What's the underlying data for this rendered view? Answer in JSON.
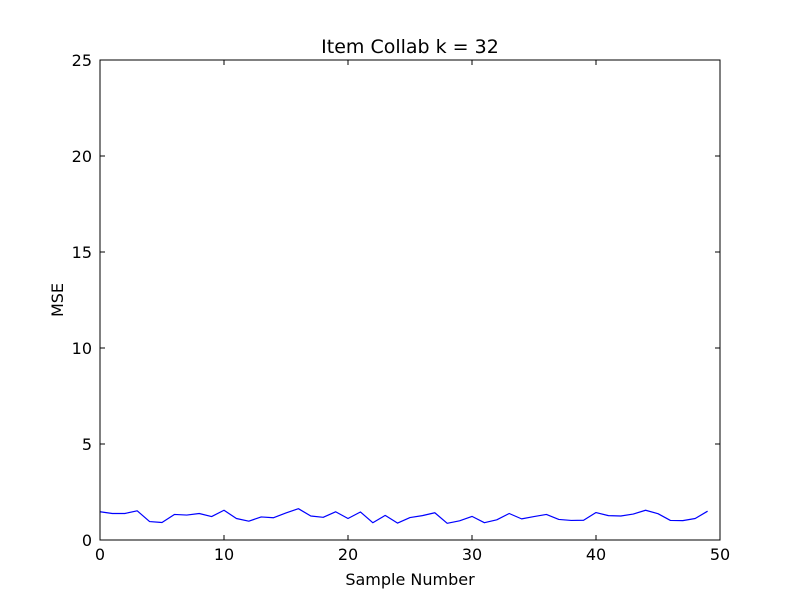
{
  "chart_data": {
    "type": "line",
    "title": "Item Collab k = 32",
    "xlabel": "Sample Number",
    "ylabel": "MSE",
    "xlim": [
      0,
      50
    ],
    "ylim": [
      0,
      25
    ],
    "xticks": [
      0,
      10,
      20,
      30,
      40,
      50
    ],
    "yticks": [
      0,
      5,
      10,
      15,
      20,
      25
    ],
    "xtick_labels": [
      "0",
      "10",
      "20",
      "30",
      "40",
      "50"
    ],
    "ytick_labels": [
      "0",
      "5",
      "10",
      "15",
      "20",
      "25"
    ],
    "grid": false,
    "series": [
      {
        "color": "#0000ff",
        "x": [
          0,
          1,
          2,
          3,
          4,
          5,
          6,
          7,
          8,
          9,
          10,
          11,
          12,
          13,
          14,
          15,
          16,
          17,
          18,
          19,
          20,
          21,
          22,
          23,
          24,
          25,
          26,
          27,
          28,
          29,
          30,
          31,
          32,
          33,
          34,
          35,
          36,
          37,
          38,
          39,
          40,
          41,
          42,
          43,
          44,
          45,
          46,
          47,
          48,
          49
        ],
        "y": [
          1.47,
          1.38,
          1.38,
          1.52,
          0.96,
          0.91,
          1.33,
          1.3,
          1.38,
          1.22,
          1.55,
          1.12,
          0.98,
          1.2,
          1.16,
          1.41,
          1.63,
          1.25,
          1.18,
          1.47,
          1.12,
          1.46,
          0.9,
          1.28,
          0.88,
          1.17,
          1.27,
          1.42,
          0.87,
          1.0,
          1.23,
          0.9,
          1.05,
          1.38,
          1.1,
          1.22,
          1.33,
          1.07,
          1.02,
          1.03,
          1.43,
          1.27,
          1.25,
          1.35,
          1.55,
          1.37,
          1.02,
          1.01,
          1.12,
          1.5
        ]
      }
    ]
  }
}
